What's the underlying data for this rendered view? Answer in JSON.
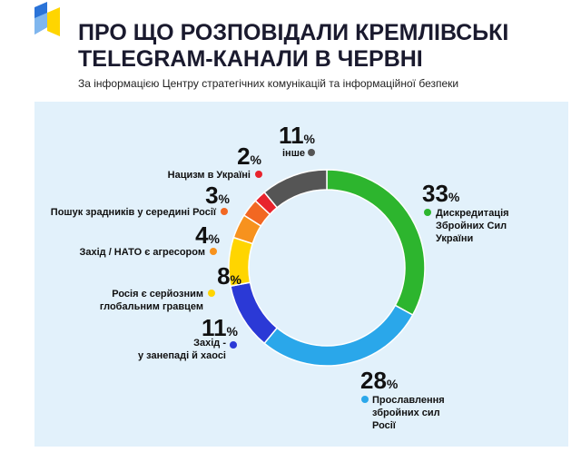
{
  "header": {
    "title_lines": [
      "ПРО ЩО РОЗПОВІДАЛИ КРЕМЛІВСЬКІ",
      "TELEGRAM-КАНАЛИ В ЧЕРВНІ"
    ],
    "subtitle": "За інформацією Центру стратегічних комунікацій та інформаційної безпеки"
  },
  "chart_data": {
    "type": "donut",
    "categories": [
      "Дискредитація\nЗбройних Сил\nУкраїни",
      "Прославлення\nзбройних сил\nРосії",
      "Захід -\nу занепаді й хаосі",
      "Росія є серйозним\nглобальним гравцем",
      "Захід / НАТО є агресором",
      "Пошук зрадників у середині Росії",
      "Нацизм в Україні",
      "інше"
    ],
    "values": [
      33,
      28,
      11,
      8,
      4,
      3,
      2,
      11
    ],
    "value_labels": [
      "33%",
      "28%",
      "11%",
      "8%",
      "4%",
      "3%",
      "2%",
      "11%"
    ],
    "colors": [
      "#2db52e",
      "#2aa7ea",
      "#2b39d6",
      "#ffd500",
      "#f7921e",
      "#f26722",
      "#e8242d",
      "#555555"
    ]
  }
}
